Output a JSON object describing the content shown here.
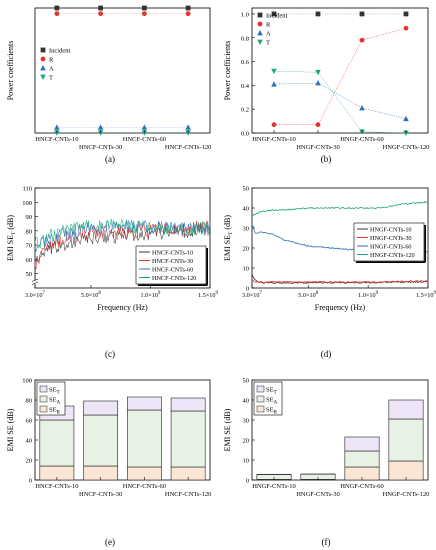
{
  "panel_labels": [
    "(a)",
    "(b)",
    "(c)",
    "(d)",
    "(e)",
    "(f)"
  ],
  "chart_data": [
    {
      "id": "a",
      "type": "scatter",
      "ylabel": "Power coefficients",
      "xlabel": "",
      "categories": [
        "HNCF-CNTs-10",
        "HNCF-CNTs-30",
        "HNCF-CNTs-60",
        "HNCF-CNTs-120"
      ],
      "category_label_rows": [
        0,
        1,
        0,
        1
      ],
      "ylim": [
        0,
        1.0
      ],
      "show_y_ticks": false,
      "legend_position": "center-left",
      "series": [
        {
          "name": "Incident",
          "marker": "square",
          "color": "#333333",
          "values": [
            1.0,
            1.0,
            1.0,
            1.0
          ]
        },
        {
          "name": "R",
          "marker": "circle",
          "color": "#e8322f",
          "values": [
            0.955,
            0.955,
            0.955,
            0.955
          ]
        },
        {
          "name": "A",
          "marker": "triangle-up",
          "color": "#2c6fc0",
          "values": [
            0.045,
            0.045,
            0.045,
            0.045
          ]
        },
        {
          "name": "T",
          "marker": "triangle-down",
          "color": "#1aa97a",
          "values": [
            0.002,
            0.002,
            0.002,
            0.002
          ]
        }
      ]
    },
    {
      "id": "b",
      "type": "line",
      "ylabel": "Power coefficients",
      "xlabel": "",
      "categories": [
        "HNGF-CNTs-10",
        "HNGF-CNTs-30",
        "HNGF-CNTs-60",
        "HNGF-CNTs-120"
      ],
      "category_label_rows": [
        0,
        1,
        0,
        1
      ],
      "ylim": [
        0,
        1.05
      ],
      "yticks": [
        "0.0",
        "0.2",
        "0.4",
        "0.6",
        "0.8",
        "1.0"
      ],
      "ytick_values": [
        0,
        0.2,
        0.4,
        0.6,
        0.8,
        1.0
      ],
      "legend_position": "top-left",
      "series": [
        {
          "name": "Incident",
          "marker": "square",
          "color": "#333333",
          "values": [
            1.0,
            1.0,
            1.0,
            1.0
          ]
        },
        {
          "name": "R",
          "marker": "circle",
          "color": "#e8322f",
          "values": [
            0.07,
            0.07,
            0.78,
            0.88
          ]
        },
        {
          "name": "A",
          "marker": "triangle-up",
          "color": "#2c6fc0",
          "values": [
            0.41,
            0.42,
            0.21,
            0.12
          ]
        },
        {
          "name": "T",
          "marker": "triangle-down",
          "color": "#1aa97a",
          "values": [
            0.52,
            0.51,
            0.01,
            0.0
          ]
        }
      ]
    },
    {
      "id": "c",
      "type": "line",
      "ylabel": "EMI SE",
      "ylabel_sub": "T",
      "ylabel_unit": " (dB)",
      "xlabel": "Frequency (Hz)",
      "xlim": [
        30000000.0,
        1500000000.0
      ],
      "xticks": [
        "3.0×10",
        "5.0×10",
        "1.0×10",
        "1.5×10"
      ],
      "xtick_sup": [
        "7",
        "8",
        "9",
        "9"
      ],
      "xtick_values": [
        30000000.0,
        500000000.0,
        1000000000.0,
        1500000000.0
      ],
      "ylim": [
        40,
        110
      ],
      "yticks": [
        "50",
        "60",
        "70",
        "80",
        "90",
        "100",
        "110"
      ],
      "ytick_values": [
        50,
        60,
        70,
        80,
        90,
        100,
        110
      ],
      "axis_break": true,
      "legend_position": "bottom-right",
      "series": [
        {
          "name": "HNCF-CNTs-10",
          "color": "#3a3a3a",
          "x": [
            30000000.0,
            100000000.0,
            200000000.0,
            300000000.0,
            400000000.0,
            500000000.0,
            700000000.0,
            900000000.0,
            1100000000.0,
            1300000000.0,
            1500000000.0
          ],
          "values": [
            60,
            63,
            68,
            71,
            73,
            75,
            76,
            78,
            79,
            80,
            82
          ]
        },
        {
          "name": "HNCF-CNTs-30",
          "color": "#e8322f",
          "x": [
            30000000.0,
            100000000.0,
            200000000.0,
            300000000.0,
            400000000.0,
            500000000.0,
            700000000.0,
            900000000.0,
            1100000000.0,
            1300000000.0,
            1500000000.0
          ],
          "values": [
            52,
            68,
            72,
            75,
            77,
            78,
            79,
            80,
            80,
            81,
            84
          ]
        },
        {
          "name": "HNCF-CNTs-60",
          "color": "#2c6fc0",
          "x": [
            30000000.0,
            100000000.0,
            200000000.0,
            300000000.0,
            400000000.0,
            500000000.0,
            700000000.0,
            900000000.0,
            1100000000.0,
            1300000000.0,
            1500000000.0
          ],
          "values": [
            68,
            72,
            75,
            78,
            80,
            82,
            83,
            83,
            82,
            82,
            82
          ]
        },
        {
          "name": "HNCF-CNTs-120",
          "color": "#1aa97a",
          "x": [
            30000000.0,
            100000000.0,
            200000000.0,
            300000000.0,
            400000000.0,
            500000000.0,
            700000000.0,
            900000000.0,
            1100000000.0,
            1300000000.0,
            1500000000.0
          ],
          "values": [
            70,
            74,
            78,
            80,
            82,
            83,
            84,
            83,
            82,
            81,
            81
          ]
        }
      ]
    },
    {
      "id": "d",
      "type": "line",
      "ylabel": "EMI SE",
      "ylabel_sub": "T",
      "ylabel_unit": " (dB)",
      "xlabel": "Frequency (Hz)",
      "xlim": [
        30000000.0,
        1500000000.0
      ],
      "xticks": [
        "3.0×10",
        "5.0×10",
        "1.0×10",
        "1.5×10"
      ],
      "xtick_sup": [
        "7",
        "8",
        "9",
        "9"
      ],
      "xtick_values": [
        30000000.0,
        500000000.0,
        1000000000.0,
        1500000000.0
      ],
      "ylim": [
        0,
        50
      ],
      "yticks": [
        "0",
        "10",
        "20",
        "30",
        "40",
        "50"
      ],
      "ytick_values": [
        0,
        10,
        20,
        30,
        40,
        50
      ],
      "legend_position": "center-right",
      "series": [
        {
          "name": "HNGF-CNTs-10",
          "color": "#3a3a3a",
          "x": [
            30000000.0,
            60000000.0,
            100000000.0,
            200000000.0,
            300000000.0,
            500000000.0,
            700000000.0,
            900000000.0,
            1100000000.0,
            1300000000.0,
            1500000000.0
          ],
          "values": [
            7,
            3.5,
            2.8,
            2.6,
            2.6,
            2.6,
            2.7,
            2.7,
            2.8,
            3.0,
            3.1
          ]
        },
        {
          "name": "HNGF-CNTs-30",
          "color": "#e8322f",
          "x": [
            30000000.0,
            60000000.0,
            100000000.0,
            200000000.0,
            300000000.0,
            500000000.0,
            700000000.0,
            900000000.0,
            1100000000.0,
            1300000000.0,
            1500000000.0
          ],
          "values": [
            4,
            3.0,
            3.0,
            3.0,
            3.0,
            3.0,
            3.0,
            3.0,
            3.0,
            3.3,
            3.5
          ]
        },
        {
          "name": "HNGF-CNTs-60",
          "color": "#2c6fc0",
          "x": [
            30000000.0,
            60000000.0,
            100000000.0,
            200000000.0,
            300000000.0,
            500000000.0,
            700000000.0,
            900000000.0,
            1100000000.0,
            1300000000.0,
            1500000000.0
          ],
          "values": [
            32,
            27,
            28,
            27,
            24,
            21,
            20,
            19,
            18,
            19,
            18
          ]
        },
        {
          "name": "HNGF-CNTs-120",
          "color": "#1aa97a",
          "x": [
            30000000.0,
            60000000.0,
            100000000.0,
            200000000.0,
            300000000.0,
            500000000.0,
            700000000.0,
            900000000.0,
            1100000000.0,
            1300000000.0,
            1500000000.0
          ],
          "values": [
            36,
            37,
            38,
            39,
            39,
            40,
            40,
            40,
            40,
            42,
            43
          ]
        }
      ]
    },
    {
      "id": "e",
      "type": "bar",
      "stacked": true,
      "ylabel": "EMI SE (dB)",
      "xlabel": "",
      "categories": [
        "HNCF-CNTs-10",
        "HNCF-CNTs-30",
        "HNCF-CNTs-60",
        "HNCF-CNTs-120"
      ],
      "category_label_rows": [
        0,
        1,
        0,
        1
      ],
      "ylim": [
        0,
        100
      ],
      "yticks": [
        "0",
        "20",
        "40",
        "60",
        "80",
        "100"
      ],
      "ytick_values": [
        0,
        20,
        40,
        60,
        80,
        100
      ],
      "legend_position": "top-left",
      "legend_order": [
        2,
        1,
        0
      ],
      "series": [
        {
          "name": "SE",
          "name_sub": "R",
          "color": "#fbe6d6",
          "values": [
            14,
            14,
            13,
            13
          ]
        },
        {
          "name": "SE",
          "name_sub": "A",
          "color": "#e8f2e4",
          "values": [
            46,
            51,
            57,
            56
          ]
        },
        {
          "name": "SE",
          "name_sub": "T",
          "color": "#eee6f8",
          "values": [
            14,
            14,
            13,
            13
          ]
        }
      ]
    },
    {
      "id": "f",
      "type": "bar",
      "stacked": true,
      "ylabel": "EMI SE (dB)",
      "xlabel": "",
      "categories": [
        "HNGF-CNTs-10",
        "HNGF-CNTs-30",
        "HNGF-CNTs-60",
        "HNGF-CNTs-120"
      ],
      "category_label_rows": [
        0,
        1,
        0,
        1
      ],
      "ylim": [
        0,
        50
      ],
      "yticks": [
        "0",
        "10",
        "20",
        "30",
        "40",
        "50"
      ],
      "ytick_values": [
        0,
        10,
        20,
        30,
        40,
        50
      ],
      "legend_position": "top-left",
      "legend_order": [
        2,
        1,
        0
      ],
      "series": [
        {
          "name": "SE",
          "name_sub": "R",
          "color": "#fbe6d6",
          "values": [
            0.3,
            0.3,
            6.5,
            9.5
          ]
        },
        {
          "name": "SE",
          "name_sub": "A",
          "color": "#e8f2e4",
          "values": [
            2.4,
            2.6,
            8,
            21
          ]
        },
        {
          "name": "SE",
          "name_sub": "T",
          "color": "#eee6f8",
          "values": [
            0.1,
            0.1,
            7,
            9.5
          ]
        }
      ]
    }
  ]
}
